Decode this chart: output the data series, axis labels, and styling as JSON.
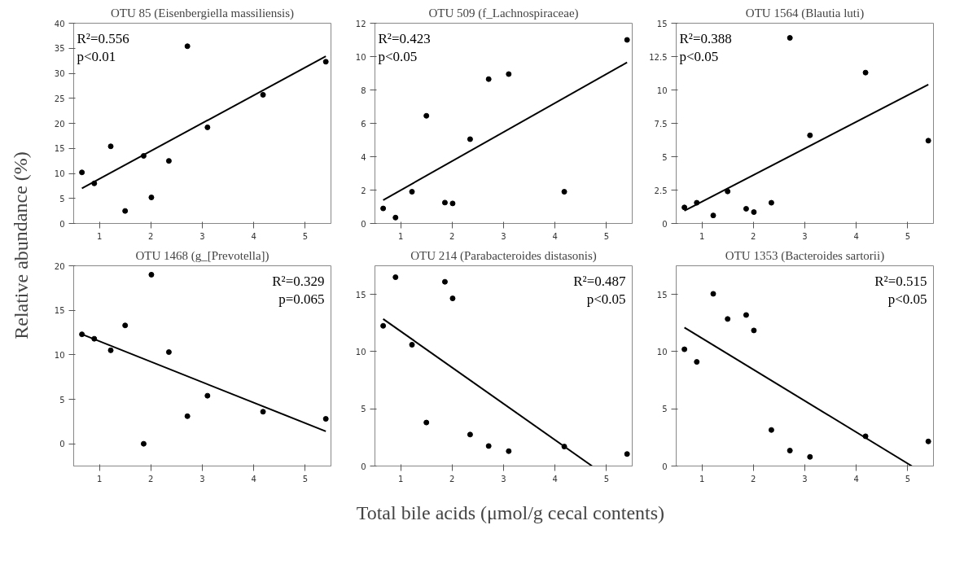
{
  "chart_data": [
    {
      "type": "scatter",
      "title": "OTU 85 (Eisenbergiella massiliensis)",
      "ylabel": "Relative  abundance (%)",
      "x": [
        0.66,
        0.9,
        1.22,
        1.5,
        1.86,
        2.01,
        2.35,
        2.71,
        3.1,
        4.18,
        5.4
      ],
      "xlim": [
        0.5,
        5.5
      ],
      "xticks": [
        1,
        2,
        3,
        4,
        5
      ],
      "ylim": [
        0,
        40
      ],
      "yticks": [
        0,
        5,
        10,
        15,
        20,
        25,
        30,
        35,
        40
      ],
      "grid": false,
      "annotations": [
        "R²=0.556",
        "p<0.01"
      ],
      "series": [
        {
          "marker": "circle",
          "color": "#000000",
          "values": [
            10.2,
            8.0,
            15.4,
            2.5,
            13.5,
            5.2,
            12.5,
            35.4,
            19.2,
            25.7,
            32.3
          ]
        },
        {
          "type": "line",
          "color": "#000000",
          "x": [
            0.66,
            5.4
          ],
          "values": [
            7.0,
            33.4
          ]
        }
      ]
    },
    {
      "type": "scatter",
      "title": "OTU 509 (f_Lachnospiraceae)",
      "x": [
        0.66,
        0.9,
        1.22,
        1.5,
        1.86,
        2.01,
        2.35,
        2.71,
        3.1,
        4.18,
        5.4
      ],
      "xlim": [
        0.5,
        5.5
      ],
      "xticks": [
        1,
        2,
        3,
        4,
        5
      ],
      "ylim": [
        0,
        12
      ],
      "yticks": [
        0,
        2,
        4,
        6,
        8,
        10,
        12
      ],
      "grid": false,
      "annotations": [
        "R²=0.423",
        "p<0.05"
      ],
      "series": [
        {
          "marker": "circle",
          "color": "#000000",
          "values": [
            0.9,
            0.35,
            1.9,
            6.45,
            1.25,
            1.2,
            5.05,
            8.65,
            8.95,
            1.9,
            11.0
          ]
        },
        {
          "type": "line",
          "color": "#000000",
          "x": [
            0.66,
            5.4
          ],
          "values": [
            1.4,
            9.65
          ]
        }
      ]
    },
    {
      "type": "scatter",
      "title": "OTU 1564 (Blautia luti)",
      "x": [
        0.66,
        0.9,
        1.22,
        1.5,
        1.86,
        2.01,
        2.35,
        2.71,
        3.1,
        4.18,
        5.4
      ],
      "xlim": [
        0.5,
        5.5
      ],
      "xticks": [
        1,
        2,
        3,
        4,
        5
      ],
      "ylim": [
        0,
        15
      ],
      "yticks": [
        0,
        2.5,
        5,
        7.5,
        10,
        12.5,
        15
      ],
      "grid": false,
      "annotations": [
        "R²=0.388",
        "p<0.05"
      ],
      "series": [
        {
          "marker": "circle",
          "color": "#000000",
          "values": [
            1.2,
            1.55,
            0.6,
            2.4,
            1.1,
            0.85,
            1.55,
            13.9,
            6.6,
            11.3,
            6.2
          ]
        },
        {
          "type": "line",
          "color": "#000000",
          "x": [
            0.66,
            5.4
          ],
          "values": [
            0.95,
            10.4
          ]
        }
      ]
    },
    {
      "type": "scatter",
      "title": "OTU 1468 (g_[Prevotella])",
      "x": [
        0.66,
        0.9,
        1.22,
        1.5,
        1.86,
        2.01,
        2.35,
        2.71,
        3.1,
        4.18,
        5.4
      ],
      "xlim": [
        0.5,
        5.5
      ],
      "xticks": [
        1,
        2,
        3,
        4,
        5
      ],
      "ylim": [
        -2.5,
        20
      ],
      "yticks": [
        0,
        5,
        10,
        15,
        20
      ],
      "grid": false,
      "annotations": [
        "R²=0.329",
        "p=0.065"
      ],
      "series": [
        {
          "marker": "circle",
          "color": "#000000",
          "values": [
            12.3,
            11.8,
            10.5,
            13.3,
            0.0,
            19.0,
            10.3,
            3.1,
            5.4,
            3.6,
            2.8
          ]
        },
        {
          "type": "line",
          "color": "#000000",
          "x": [
            0.66,
            5.4
          ],
          "values": [
            12.3,
            1.4
          ]
        }
      ]
    },
    {
      "type": "scatter",
      "title": "OTU 214 (Parabacteroides distasonis)",
      "xlabel": "Total bile acids (μmol/g cecal contents)",
      "x": [
        0.66,
        0.9,
        1.22,
        1.5,
        1.86,
        2.01,
        2.35,
        2.71,
        3.1,
        4.18,
        5.4
      ],
      "xlim": [
        0.5,
        5.5
      ],
      "xticks": [
        1,
        2,
        3,
        4,
        5
      ],
      "ylim": [
        0,
        17.5
      ],
      "yticks": [
        0,
        5,
        10,
        15
      ],
      "grid": false,
      "annotations": [
        "R²=0.487",
        "p<0.05"
      ],
      "series": [
        {
          "marker": "circle",
          "color": "#000000",
          "values": [
            12.25,
            16.5,
            10.6,
            3.8,
            16.1,
            14.65,
            2.75,
            1.75,
            1.3,
            1.7,
            1.05
          ]
        },
        {
          "type": "line",
          "color": "#000000",
          "x": [
            0.66,
            4.72
          ],
          "values": [
            12.85,
            0
          ]
        }
      ]
    },
    {
      "type": "scatter",
      "title": "OTU 1353 (Bacteroides sartorii)",
      "x": [
        0.66,
        0.9,
        1.22,
        1.5,
        1.86,
        2.01,
        2.35,
        2.71,
        3.1,
        4.18,
        5.4
      ],
      "xlim": [
        0.5,
        5.5
      ],
      "xticks": [
        1,
        2,
        3,
        4,
        5
      ],
      "ylim": [
        0,
        17.5
      ],
      "yticks": [
        0,
        5,
        10,
        15
      ],
      "grid": false,
      "annotations": [
        "R²=0.515",
        "p<0.05"
      ],
      "series": [
        {
          "marker": "circle",
          "color": "#000000",
          "values": [
            10.2,
            9.1,
            15.05,
            12.85,
            13.2,
            11.85,
            3.15,
            1.35,
            0.8,
            2.6,
            2.15
          ]
        },
        {
          "type": "line",
          "color": "#000000",
          "x": [
            0.66,
            5.08
          ],
          "values": [
            12.1,
            0
          ]
        }
      ]
    }
  ]
}
